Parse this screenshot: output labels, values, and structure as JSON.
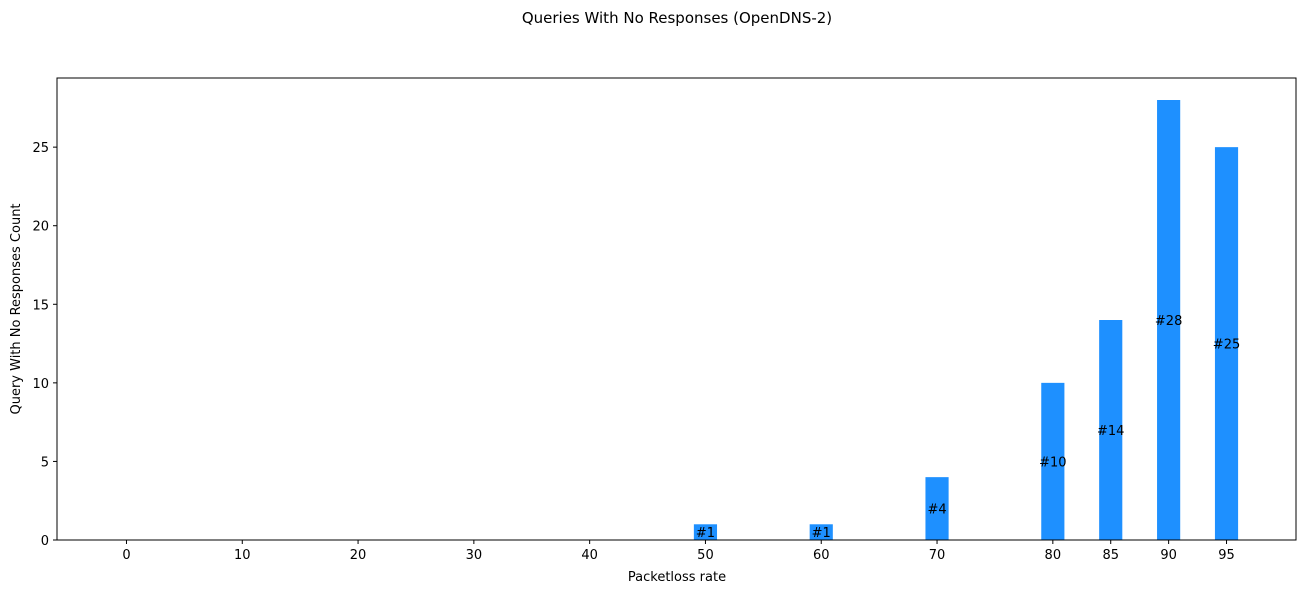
{
  "chart_data": {
    "type": "bar",
    "title": "Queries With No Responses (OpenDNS-2)",
    "xlabel": "Packetloss rate",
    "ylabel": "Query With No Responses Count",
    "x": [
      0,
      10,
      20,
      30,
      40,
      50,
      60,
      70,
      80,
      85,
      90,
      95
    ],
    "values": [
      0,
      0,
      0,
      0,
      0,
      1,
      1,
      4,
      10,
      14,
      28,
      25
    ],
    "bar_labels": [
      "",
      "",
      "",
      "",
      "",
      "#1",
      "#1",
      "#4",
      "#10",
      "#14",
      "#28",
      "#25"
    ],
    "xlim": [
      -6,
      101
    ],
    "ylim": [
      0,
      29.4
    ],
    "yticks": [
      0,
      5,
      10,
      15,
      20,
      25
    ],
    "xticks": [
      0,
      10,
      20,
      30,
      40,
      50,
      60,
      70,
      80,
      85,
      90,
      95
    ],
    "bar_width": 2,
    "bar_color": "#1e90ff",
    "grid": false
  }
}
